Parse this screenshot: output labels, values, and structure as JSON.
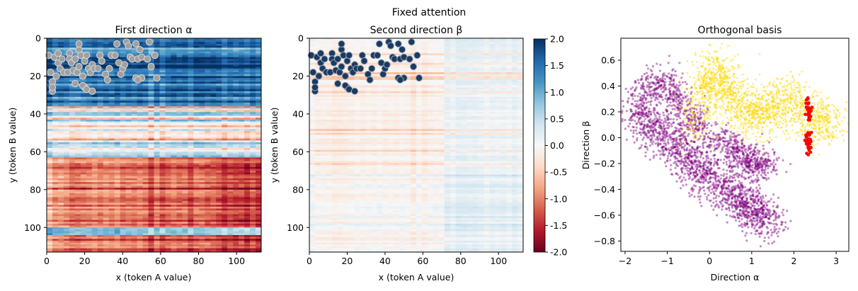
{
  "figure": {
    "suptitle": "Fixed attention"
  },
  "colorbar": {
    "cmap": "RdBu",
    "range": [
      -2.0,
      2.0
    ],
    "ticks": [
      "-2.0",
      "-1.5",
      "-1.0",
      "-0.5",
      "0.0",
      "0.5",
      "1.0",
      "1.5",
      "2.0"
    ]
  },
  "chart_data": [
    {
      "type": "heatmap",
      "title": "First direction α",
      "xlabel": "x (token A value)",
      "ylabel": "y (token B value)",
      "xlim": [
        0,
        113
      ],
      "ylim": [
        113,
        0
      ],
      "xticks": [
        "0",
        "20",
        "40",
        "60",
        "80",
        "100"
      ],
      "yticks": [
        "0",
        "20",
        "40",
        "60",
        "80",
        "100"
      ],
      "value_range": [
        -2,
        2
      ],
      "row_pattern": "rows 0-35 strongly positive (blue), rows 36-62 weakly mixed, rows 63-113 negative (red) growing with x",
      "marker_style": {
        "fill": "#a0a0a0",
        "stroke": "#d8d8d8"
      },
      "markers": [
        [
          1,
          9
        ],
        [
          2,
          18
        ],
        [
          3,
          23
        ],
        [
          3,
          28
        ],
        [
          4,
          10
        ],
        [
          5,
          20
        ],
        [
          6,
          8
        ],
        [
          6,
          13
        ],
        [
          7,
          16
        ],
        [
          8,
          11
        ],
        [
          9,
          18
        ],
        [
          11,
          18
        ],
        [
          12,
          8
        ],
        [
          12,
          11
        ],
        [
          13,
          13
        ],
        [
          14,
          17
        ],
        [
          15,
          11
        ],
        [
          15,
          24
        ],
        [
          16,
          18
        ],
        [
          17,
          15
        ],
        [
          17,
          6
        ],
        [
          18,
          9
        ],
        [
          19,
          20
        ],
        [
          20,
          26
        ],
        [
          20,
          12
        ],
        [
          21,
          9
        ],
        [
          22,
          16
        ],
        [
          23,
          18
        ],
        [
          24,
          14
        ],
        [
          25,
          16
        ],
        [
          27,
          16
        ],
        [
          28,
          9
        ],
        [
          29,
          12
        ],
        [
          31,
          19
        ],
        [
          33,
          16
        ],
        [
          34,
          9
        ],
        [
          36,
          9
        ],
        [
          37,
          3
        ],
        [
          38,
          13
        ],
        [
          39,
          19
        ],
        [
          40,
          16
        ],
        [
          41,
          14
        ],
        [
          42,
          2
        ],
        [
          43,
          4
        ],
        [
          44,
          10
        ],
        [
          45,
          11
        ],
        [
          47,
          3
        ],
        [
          48,
          11
        ],
        [
          49,
          6
        ],
        [
          50,
          10
        ],
        [
          50,
          21
        ],
        [
          53,
          11
        ],
        [
          54,
          2
        ],
        [
          55,
          15
        ],
        [
          57,
          9
        ],
        [
          19,
          25
        ],
        [
          21,
          27
        ],
        [
          24,
          28
        ],
        [
          3,
          26
        ],
        [
          17,
          3
        ],
        [
          32,
          22
        ],
        [
          47,
          21
        ],
        [
          48,
          22
        ],
        [
          58,
          21
        ]
      ]
    },
    {
      "type": "heatmap",
      "title": "Second direction β",
      "xlabel": "x (token A value)",
      "ylabel": "y (token B value)",
      "xlim": [
        0,
        113
      ],
      "ylim": [
        113,
        0
      ],
      "xticks": [
        "0",
        "20",
        "40",
        "60",
        "80",
        "100"
      ],
      "yticks": [
        "0",
        "20",
        "40",
        "60",
        "80",
        "100"
      ],
      "value_range": [
        -2,
        2
      ],
      "row_pattern": "mostly near zero; faint red stripes in rows 0-70, faint blue for x above 70",
      "marker_style": {
        "fill": "#1b3a63",
        "stroke": "#9aa7b5"
      },
      "markers": [
        [
          1,
          9
        ],
        [
          2,
          18
        ],
        [
          3,
          23
        ],
        [
          3,
          28
        ],
        [
          4,
          10
        ],
        [
          5,
          20
        ],
        [
          6,
          8
        ],
        [
          6,
          13
        ],
        [
          7,
          16
        ],
        [
          8,
          11
        ],
        [
          9,
          18
        ],
        [
          11,
          18
        ],
        [
          12,
          8
        ],
        [
          12,
          11
        ],
        [
          13,
          13
        ],
        [
          14,
          17
        ],
        [
          15,
          11
        ],
        [
          15,
          24
        ],
        [
          16,
          18
        ],
        [
          17,
          15
        ],
        [
          17,
          6
        ],
        [
          18,
          9
        ],
        [
          19,
          20
        ],
        [
          20,
          26
        ],
        [
          20,
          12
        ],
        [
          21,
          9
        ],
        [
          22,
          16
        ],
        [
          23,
          18
        ],
        [
          24,
          14
        ],
        [
          25,
          16
        ],
        [
          27,
          16
        ],
        [
          28,
          9
        ],
        [
          29,
          12
        ],
        [
          31,
          19
        ],
        [
          33,
          16
        ],
        [
          34,
          9
        ],
        [
          36,
          9
        ],
        [
          37,
          3
        ],
        [
          38,
          13
        ],
        [
          39,
          19
        ],
        [
          40,
          16
        ],
        [
          41,
          14
        ],
        [
          42,
          2
        ],
        [
          43,
          4
        ],
        [
          44,
          10
        ],
        [
          45,
          11
        ],
        [
          47,
          3
        ],
        [
          48,
          11
        ],
        [
          49,
          6
        ],
        [
          50,
          10
        ],
        [
          50,
          21
        ],
        [
          53,
          11
        ],
        [
          54,
          2
        ],
        [
          55,
          15
        ],
        [
          57,
          9
        ],
        [
          19,
          25
        ],
        [
          21,
          27
        ],
        [
          24,
          28
        ],
        [
          3,
          26
        ],
        [
          17,
          3
        ],
        [
          32,
          22
        ],
        [
          47,
          21
        ],
        [
          48,
          22
        ],
        [
          58,
          21
        ]
      ]
    },
    {
      "type": "scatter",
      "title": "Orthogonal basis",
      "xlabel": "Direction α",
      "ylabel": "Direction β",
      "xlim": [
        -2.1,
        3.3
      ],
      "ylim": [
        -0.88,
        0.77
      ],
      "xticks": [
        -2,
        -1,
        0,
        1,
        2,
        3
      ],
      "yticks": [
        0.6,
        0.4,
        0.2,
        0.0,
        -0.2,
        -0.4,
        -0.6,
        -0.8
      ],
      "clusters": [
        {
          "color": "#800080",
          "description": "main diagonal band",
          "center_path": [
            [
              -1.8,
              0.2
            ],
            [
              -1.2,
              0.05
            ],
            [
              -0.6,
              -0.15
            ],
            [
              0.0,
              -0.3
            ],
            [
              0.6,
              -0.45
            ],
            [
              1.0,
              -0.55
            ],
            [
              1.5,
              -0.65
            ]
          ]
        },
        {
          "color": "#800080",
          "description": "upper arm",
          "center_path": [
            [
              -1.6,
              0.35
            ],
            [
              -1.0,
              0.45
            ],
            [
              -0.6,
              0.2
            ],
            [
              -0.2,
              0.05
            ]
          ]
        },
        {
          "color": "#800080",
          "description": "right lobe",
          "center_path": [
            [
              0.2,
              0.0
            ],
            [
              0.6,
              -0.1
            ],
            [
              1.0,
              -0.2
            ],
            [
              1.4,
              -0.2
            ]
          ]
        },
        {
          "color": "#ffd700",
          "description": "upper plume",
          "center_path": [
            [
              -0.4,
              0.1
            ],
            [
              0.0,
              0.5
            ],
            [
              0.4,
              0.4
            ],
            [
              0.8,
              0.2
            ],
            [
              1.3,
              0.2
            ],
            [
              1.8,
              0.3
            ],
            [
              2.4,
              0.15
            ],
            [
              2.9,
              0.1
            ]
          ]
        },
        {
          "color": "#ff0000",
          "description": "vertical column",
          "center_path": [
            [
              2.35,
              0.28
            ],
            [
              2.35,
              0.15
            ],
            [
              2.35,
              0.0
            ],
            [
              2.35,
              -0.15
            ]
          ]
        }
      ]
    }
  ]
}
